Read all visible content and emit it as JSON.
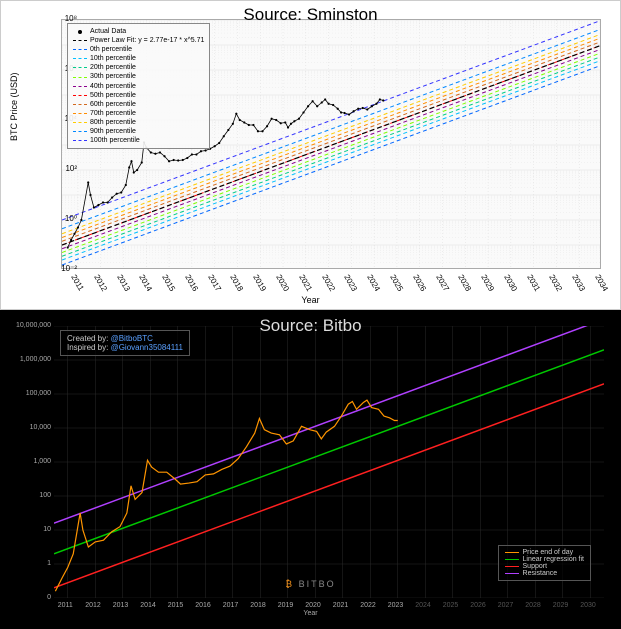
{
  "top_chart": {
    "type": "line",
    "title": "Source: Sminston",
    "ylabel": "BTC Price (USD)",
    "xlabel": "Year",
    "background_color": "#fafafa",
    "grid_color": "#dddddd",
    "frame_color": "#aaaaaa",
    "title_fontsize": 17,
    "label_fontsize": 9,
    "tick_fontsize": 8,
    "yscale": "log",
    "ylim_exp": [
      -2,
      8
    ],
    "y_ticks": [
      {
        "exp": -2,
        "label": "10⁻²"
      },
      {
        "exp": 0,
        "label": "10⁰"
      },
      {
        "exp": 2,
        "label": "10²"
      },
      {
        "exp": 4,
        "label": "10⁴"
      },
      {
        "exp": 6,
        "label": "10⁶"
      },
      {
        "exp": 8,
        "label": "10⁸"
      }
    ],
    "xlim": [
      2010.3,
      2034
    ],
    "x_ticks": [
      2011,
      2012,
      2013,
      2014,
      2015,
      2016,
      2017,
      2018,
      2019,
      2020,
      2021,
      2022,
      2023,
      2024,
      2025,
      2026,
      2027,
      2028,
      2029,
      2030,
      2031,
      2032,
      2033,
      2034
    ],
    "legend": [
      {
        "label": "Actual Data",
        "type": "dot",
        "color": "#000000"
      },
      {
        "label": "Power Law Fit: y = 2.77e-17 * x^5.71",
        "type": "dash",
        "color": "#000000"
      },
      {
        "label": "0th percentile",
        "type": "dash",
        "color": "#0066ff"
      },
      {
        "label": "10th percentile",
        "type": "dash",
        "color": "#00bfff"
      },
      {
        "label": "20th percentile",
        "type": "dash",
        "color": "#00cc88"
      },
      {
        "label": "30th percentile",
        "type": "dash",
        "color": "#7fff00"
      },
      {
        "label": "40th percentile",
        "type": "dash",
        "color": "#8b008b"
      },
      {
        "label": "50th percentile",
        "type": "dash",
        "color": "#ff0000"
      },
      {
        "label": "60th percentile",
        "type": "dash",
        "color": "#d2691e"
      },
      {
        "label": "70th percentile",
        "type": "dash",
        "color": "#ff8c00"
      },
      {
        "label": "80th percentile",
        "type": "dash",
        "color": "#ffcc00"
      },
      {
        "label": "90th percentile",
        "type": "dash",
        "color": "#0088ff"
      },
      {
        "label": "100th percentile",
        "type": "dash",
        "color": "#3333ff"
      }
    ],
    "percentile_lines": [
      {
        "y2010_exp": -1.8,
        "y2034_exp": 6.2,
        "color": "#0066ff"
      },
      {
        "y2010_exp": -1.6,
        "y2034_exp": 6.4,
        "color": "#00bfff"
      },
      {
        "y2010_exp": -1.45,
        "y2034_exp": 6.55,
        "color": "#00cc88"
      },
      {
        "y2010_exp": -1.3,
        "y2034_exp": 6.7,
        "color": "#7fff00"
      },
      {
        "y2010_exp": -1.15,
        "y2034_exp": 6.85,
        "color": "#8b008b"
      },
      {
        "y2010_exp": -1.0,
        "y2034_exp": 7.0,
        "color": "#ff0000"
      },
      {
        "y2010_exp": -0.85,
        "y2034_exp": 7.15,
        "color": "#d2691e"
      },
      {
        "y2010_exp": -0.7,
        "y2034_exp": 7.3,
        "color": "#ff8c00"
      },
      {
        "y2010_exp": -0.55,
        "y2034_exp": 7.45,
        "color": "#ffcc00"
      },
      {
        "y2010_exp": -0.35,
        "y2034_exp": 7.65,
        "color": "#0088ff"
      },
      {
        "y2010_exp": 0.0,
        "y2034_exp": 8.0,
        "color": "#3333ff"
      }
    ],
    "power_law_fit": {
      "y2010_exp": -1.0,
      "y2034_exp": 7.0,
      "color": "#000000"
    },
    "price_data": {
      "color": "#000000",
      "dot_size": 1,
      "points": [
        [
          2010.55,
          -1.1
        ],
        [
          2010.7,
          -0.8
        ],
        [
          2010.85,
          -0.55
        ],
        [
          2011.0,
          -0.3
        ],
        [
          2011.15,
          0.0
        ],
        [
          2011.45,
          1.5
        ],
        [
          2011.55,
          1.0
        ],
        [
          2011.7,
          0.5
        ],
        [
          2011.9,
          0.6
        ],
        [
          2012.1,
          0.7
        ],
        [
          2012.3,
          0.7
        ],
        [
          2012.5,
          0.9
        ],
        [
          2012.7,
          1.05
        ],
        [
          2012.9,
          1.1
        ],
        [
          2013.1,
          1.4
        ],
        [
          2013.25,
          2.1
        ],
        [
          2013.35,
          2.35
        ],
        [
          2013.45,
          1.9
        ],
        [
          2013.6,
          2.0
        ],
        [
          2013.8,
          2.3
        ],
        [
          2013.9,
          3.1
        ],
        [
          2014.0,
          2.9
        ],
        [
          2014.2,
          2.7
        ],
        [
          2014.4,
          2.65
        ],
        [
          2014.6,
          2.7
        ],
        [
          2014.8,
          2.55
        ],
        [
          2015.0,
          2.35
        ],
        [
          2015.2,
          2.4
        ],
        [
          2015.4,
          2.38
        ],
        [
          2015.6,
          2.4
        ],
        [
          2015.8,
          2.48
        ],
        [
          2016.0,
          2.62
        ],
        [
          2016.2,
          2.62
        ],
        [
          2016.4,
          2.75
        ],
        [
          2016.6,
          2.78
        ],
        [
          2016.8,
          2.85
        ],
        [
          2017.0,
          2.95
        ],
        [
          2017.2,
          3.08
        ],
        [
          2017.4,
          3.35
        ],
        [
          2017.6,
          3.6
        ],
        [
          2017.8,
          3.85
        ],
        [
          2017.95,
          4.25
        ],
        [
          2018.1,
          4.0
        ],
        [
          2018.3,
          3.9
        ],
        [
          2018.5,
          3.8
        ],
        [
          2018.7,
          3.8
        ],
        [
          2018.9,
          3.55
        ],
        [
          2019.1,
          3.55
        ],
        [
          2019.3,
          3.75
        ],
        [
          2019.5,
          4.05
        ],
        [
          2019.7,
          4.0
        ],
        [
          2019.9,
          3.87
        ],
        [
          2020.1,
          3.9
        ],
        [
          2020.22,
          3.7
        ],
        [
          2020.35,
          3.85
        ],
        [
          2020.5,
          3.95
        ],
        [
          2020.7,
          4.05
        ],
        [
          2020.9,
          4.3
        ],
        [
          2021.1,
          4.55
        ],
        [
          2021.3,
          4.75
        ],
        [
          2021.5,
          4.55
        ],
        [
          2021.7,
          4.7
        ],
        [
          2021.85,
          4.82
        ],
        [
          2022.0,
          4.65
        ],
        [
          2022.2,
          4.6
        ],
        [
          2022.4,
          4.45
        ],
        [
          2022.55,
          4.3
        ],
        [
          2022.7,
          4.28
        ],
        [
          2022.9,
          4.22
        ],
        [
          2023.1,
          4.35
        ],
        [
          2023.3,
          4.45
        ],
        [
          2023.5,
          4.48
        ],
        [
          2023.7,
          4.42
        ],
        [
          2023.9,
          4.55
        ],
        [
          2024.1,
          4.65
        ],
        [
          2024.25,
          4.82
        ],
        [
          2024.4,
          4.78
        ]
      ]
    }
  },
  "bottom_chart": {
    "type": "line",
    "title": "Source: Bitbo",
    "background_color": "#000000",
    "grid_color": "#2a2a2a",
    "text_color": "#cccccc",
    "title_fontsize": 17,
    "tick_fontsize": 7,
    "yscale": "log",
    "ylim_log10": [
      -1,
      7
    ],
    "y_ticks": [
      {
        "v": 7,
        "label": "10,000,000"
      },
      {
        "v": 6,
        "label": "1,000,000"
      },
      {
        "v": 5,
        "label": "100,000"
      },
      {
        "v": 4,
        "label": "10,000"
      },
      {
        "v": 3,
        "label": "1,000"
      },
      {
        "v": 2,
        "label": "100"
      },
      {
        "v": 1,
        "label": "10"
      },
      {
        "v": 0,
        "label": "1"
      },
      {
        "v": -1,
        "label": "0"
      }
    ],
    "xlim": [
      2010.5,
      2030.5
    ],
    "x_ticks": [
      2011,
      2012,
      2013,
      2014,
      2015,
      2016,
      2017,
      2018,
      2019,
      2020,
      2021,
      2022,
      2023,
      2024,
      2025,
      2026,
      2027,
      2028,
      2029,
      2030
    ],
    "x_axis_current": 2023,
    "xlabel": "Year",
    "credit": {
      "created_by": "@BitboBTC",
      "inspired_by": "@Giovann35084111",
      "link_color": "#5aa0ff"
    },
    "logo_text": "BITBO",
    "legend": [
      {
        "label": "Price end of day",
        "color": "#ff9500"
      },
      {
        "label": "Linear regression fit",
        "color": "#00c800"
      },
      {
        "label": "Support",
        "color": "#ff2020"
      },
      {
        "label": "Resistance",
        "color": "#b040ff"
      }
    ],
    "lines": {
      "resistance": {
        "y_start": 1.2,
        "y_end": 7.2,
        "color": "#b040ff",
        "width": 1.5
      },
      "regression": {
        "y_start": 0.3,
        "y_end": 6.3,
        "color": "#00c800",
        "width": 1.5
      },
      "support": {
        "y_start": -0.7,
        "y_end": 5.3,
        "color": "#ff2020",
        "width": 1.5
      }
    },
    "price_data": {
      "color": "#ff9500",
      "width": 1.2,
      "points": [
        [
          2010.55,
          -0.8
        ],
        [
          2010.8,
          -0.4
        ],
        [
          2011.0,
          -0.1
        ],
        [
          2011.2,
          0.3
        ],
        [
          2011.45,
          1.5
        ],
        [
          2011.55,
          1.0
        ],
        [
          2011.75,
          0.5
        ],
        [
          2012.0,
          0.65
        ],
        [
          2012.3,
          0.7
        ],
        [
          2012.6,
          0.95
        ],
        [
          2012.9,
          1.1
        ],
        [
          2013.15,
          1.5
        ],
        [
          2013.3,
          2.3
        ],
        [
          2013.45,
          1.9
        ],
        [
          2013.7,
          2.1
        ],
        [
          2013.9,
          3.05
        ],
        [
          2014.05,
          2.85
        ],
        [
          2014.3,
          2.7
        ],
        [
          2014.6,
          2.7
        ],
        [
          2014.9,
          2.5
        ],
        [
          2015.1,
          2.35
        ],
        [
          2015.4,
          2.38
        ],
        [
          2015.7,
          2.42
        ],
        [
          2016.0,
          2.62
        ],
        [
          2016.3,
          2.65
        ],
        [
          2016.6,
          2.78
        ],
        [
          2016.9,
          2.88
        ],
        [
          2017.2,
          3.1
        ],
        [
          2017.5,
          3.45
        ],
        [
          2017.8,
          3.85
        ],
        [
          2017.97,
          4.28
        ],
        [
          2018.15,
          3.95
        ],
        [
          2018.4,
          3.85
        ],
        [
          2018.7,
          3.8
        ],
        [
          2018.95,
          3.53
        ],
        [
          2019.2,
          3.62
        ],
        [
          2019.5,
          4.05
        ],
        [
          2019.8,
          3.95
        ],
        [
          2020.05,
          3.9
        ],
        [
          2020.22,
          3.68
        ],
        [
          2020.4,
          3.88
        ],
        [
          2020.7,
          4.05
        ],
        [
          2020.95,
          4.35
        ],
        [
          2021.2,
          4.7
        ],
        [
          2021.35,
          4.78
        ],
        [
          2021.5,
          4.55
        ],
        [
          2021.75,
          4.75
        ],
        [
          2021.88,
          4.82
        ],
        [
          2022.05,
          4.6
        ],
        [
          2022.3,
          4.55
        ],
        [
          2022.5,
          4.35
        ],
        [
          2022.7,
          4.3
        ],
        [
          2022.88,
          4.22
        ],
        [
          2023.0,
          4.22
        ]
      ]
    }
  }
}
